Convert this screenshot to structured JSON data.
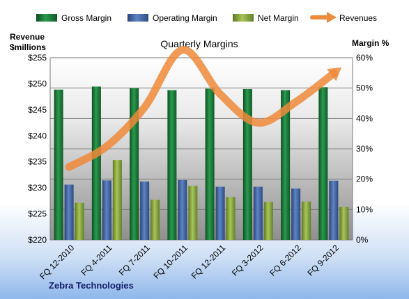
{
  "chart_data": {
    "type": "bar",
    "title": "Quarterly Margins",
    "categories": [
      "FQ 12-2010",
      "FQ 4-2011",
      "FQ 7-2011",
      "FQ 10-2011",
      "FQ 12-2011",
      "FQ 3-2012",
      "FQ 6-2012",
      "FQ 9-2012"
    ],
    "series": [
      {
        "name": "Gross Margin",
        "axis": "right",
        "values": [
          49.5,
          50.5,
          50.0,
          49.3,
          49.8,
          49.7,
          49.3,
          50.3
        ],
        "color": "#1a7a3a"
      },
      {
        "name": "Operating Margin",
        "axis": "right",
        "values": [
          18.2,
          19.6,
          19.2,
          19.7,
          17.5,
          17.5,
          16.9,
          19.5
        ],
        "color": "#3d5f9f"
      },
      {
        "name": "Net Margin",
        "axis": "right",
        "values": [
          12.2,
          26.3,
          13.2,
          17.8,
          14.1,
          12.5,
          12.6,
          10.8
        ],
        "color": "#8aab3a"
      },
      {
        "name": "Revenues",
        "type": "line",
        "axis": "left",
        "values": [
          234,
          238,
          245.5,
          256.5,
          248,
          242.5,
          246.5,
          252
        ],
        "color": "#ee8a3a"
      }
    ],
    "y_left": {
      "label_line1": "Revenue",
      "label_line2": "$millions",
      "lim": [
        220,
        255
      ],
      "ticks": [
        "$220",
        "$225",
        "$230",
        "$235",
        "$240",
        "$245",
        "$250",
        "$255"
      ]
    },
    "y_right": {
      "label": "Margin %",
      "lim": [
        0,
        60
      ],
      "ticks": [
        "0%",
        "10%",
        "20%",
        "30%",
        "40%",
        "50%",
        "60%"
      ]
    },
    "legend_position": "top",
    "grid": true
  },
  "footer": {
    "company": "Zebra Technologies"
  }
}
